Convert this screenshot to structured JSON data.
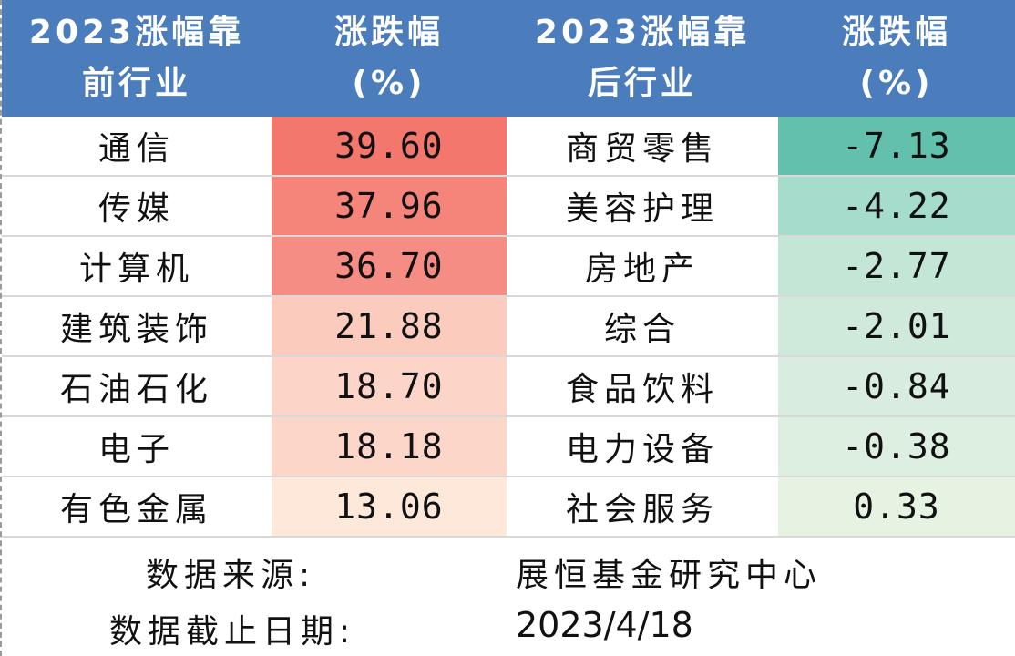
{
  "header": {
    "col1_line1": "2023涨幅靠",
    "col1_line2": "前行业",
    "col2_line1": "涨跌幅",
    "col2_line2": "(%)",
    "col3_line1": "2023涨幅靠",
    "col3_line2": "后行业",
    "col4_line1": "涨跌幅",
    "col4_line2": "(%)"
  },
  "rows": [
    {
      "top_name": "通信",
      "top_value": "39.60",
      "top_color": "#f4776d",
      "bottom_name": "商贸零售",
      "bottom_value": "-7.13",
      "bottom_color": "#62c0ac"
    },
    {
      "top_name": "传媒",
      "top_value": "37.96",
      "top_color": "#f5857b",
      "bottom_name": "美容护理",
      "bottom_value": "-4.22",
      "bottom_color": "#a6dccc"
    },
    {
      "top_name": "计算机",
      "top_value": "36.70",
      "top_color": "#f58d84",
      "bottom_name": "房地产",
      "bottom_value": "-2.77",
      "bottom_color": "#c4e6d6"
    },
    {
      "top_name": "建筑装饰",
      "top_value": "21.88",
      "top_color": "#fbcbbd",
      "bottom_name": "综合",
      "bottom_value": "-2.01",
      "bottom_color": "#cfeadb"
    },
    {
      "top_name": "石油石化",
      "top_value": "18.70",
      "top_color": "#fcd4c8",
      "bottom_name": "食品饮料",
      "bottom_value": "-0.84",
      "bottom_color": "#d8eddf"
    },
    {
      "top_name": "电子",
      "top_value": "18.18",
      "top_color": "#fcd6c9",
      "bottom_name": "电力设备",
      "bottom_value": "-0.38",
      "bottom_color": "#dcefe1"
    },
    {
      "top_name": "有色金属",
      "top_value": "13.06",
      "top_color": "#fde8da",
      "bottom_name": "社会服务",
      "bottom_value": "0.33",
      "bottom_color": "#e6f2e2"
    }
  ],
  "footer": {
    "source_label": "数据来源:",
    "source_value": "展恒基金研究中心",
    "date_label": "数据截止日期:",
    "date_value": "2023/4/18"
  },
  "colors": {
    "header_bg": "#4b7dbd",
    "header_text": "#ffffff"
  }
}
